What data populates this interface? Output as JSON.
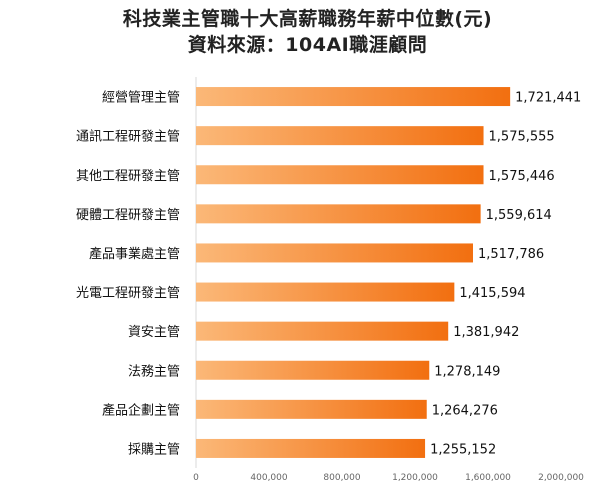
{
  "chart_data": {
    "type": "bar",
    "orientation": "horizontal",
    "title": "科技業主管職十大高薪職務年薪中位數(元)",
    "subtitle": "資料來源：104AI職涯顧問",
    "categories": [
      "經營管理主管",
      "通訊工程研發主管",
      "其他工程研發主管",
      "硬體工程研發主管",
      "產品事業處主管",
      "光電工程研發主管",
      "資安主管",
      "法務主管",
      "產品企劃主管",
      "採購主管"
    ],
    "values": [
      1721441,
      1575555,
      1575446,
      1559614,
      1517786,
      1415594,
      1381942,
      1278149,
      1264276,
      1255152
    ],
    "value_labels": [
      "1,721,441",
      "1,575,555",
      "1,575,446",
      "1,559,614",
      "1,517,786",
      "1,415,594",
      "1,381,942",
      "1,278,149",
      "1,264,276",
      "1,255,152"
    ],
    "x_ticks": [
      0,
      400000,
      800000,
      1200000,
      1600000,
      2000000
    ],
    "x_tick_labels": [
      "0",
      "400,000",
      "800,000",
      "1,200,000",
      "1,600,000",
      "2,000,000"
    ],
    "xlim": [
      0,
      2000000
    ],
    "grid": false,
    "legend": "none",
    "colors": {
      "bar_start": "#fbb878",
      "bar_end": "#f26f10"
    }
  }
}
